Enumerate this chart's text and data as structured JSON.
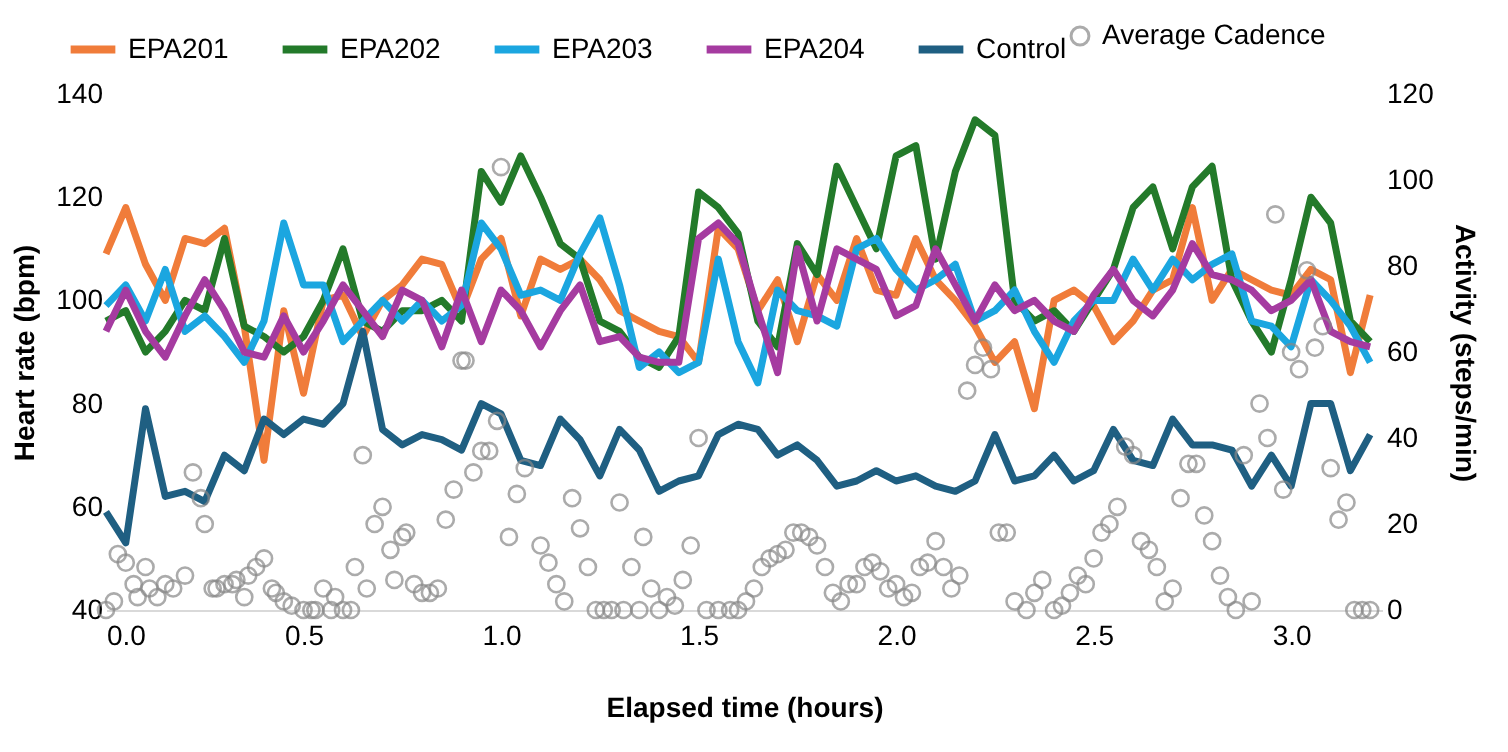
{
  "chart_data": {
    "type": "line",
    "xlabel": "Elapsed time (hours)",
    "ylabel": "Heart rate (bpm)",
    "y2label": "Activity (steps/min)",
    "xlim": [
      0,
      3.23
    ],
    "xticks": [
      {
        "value": 0,
        "label": "0.0"
      },
      0.5,
      {
        "value": 1,
        "label": "1.0"
      },
      1.5,
      {
        "value": 2,
        "label": "2.0"
      },
      2.5,
      {
        "value": 3,
        "label": "3.0"
      }
    ],
    "ylim": [
      40,
      140
    ],
    "yticks": [
      40,
      60,
      80,
      100,
      120,
      140
    ],
    "y2lim": [
      0,
      120
    ],
    "y2ticks": [
      0,
      20,
      40,
      60,
      80,
      100,
      120
    ],
    "grid": false,
    "legend": "top",
    "line_style": "solid",
    "x": [
      0,
      0.05,
      0.1,
      0.15,
      0.2,
      0.25,
      0.3,
      0.35,
      0.4,
      0.45,
      0.5,
      0.55,
      0.6,
      0.65,
      0.7,
      0.75,
      0.8,
      0.85,
      0.9,
      0.95,
      1.0,
      1.05,
      1.1,
      1.15,
      1.2,
      1.25,
      1.3,
      1.35,
      1.4,
      1.45,
      1.5,
      1.55,
      1.6,
      1.65,
      1.7,
      1.75,
      1.8,
      1.85,
      1.9,
      1.95,
      2.0,
      2.05,
      2.1,
      2.15,
      2.2,
      2.25,
      2.3,
      2.35,
      2.4,
      2.45,
      2.5,
      2.55,
      2.6,
      2.65,
      2.7,
      2.75,
      2.8,
      2.85,
      2.9,
      2.95,
      3.0,
      3.05,
      3.1,
      3.15,
      3.2
    ],
    "series": [
      {
        "name": "EPA201",
        "color": "#f07c3a",
        "values": [
          109,
          118,
          107,
          100,
          112,
          111,
          114,
          95,
          69,
          98,
          82,
          100,
          101,
          93,
          100,
          103,
          108,
          107,
          98,
          108,
          112,
          97,
          108,
          106,
          108,
          104,
          98,
          96,
          94,
          93,
          88,
          114,
          110,
          98,
          104,
          92,
          105,
          100,
          112,
          102,
          101,
          112,
          104,
          100,
          95,
          88,
          92,
          79,
          100,
          102,
          99,
          92,
          96,
          102,
          104,
          118,
          100,
          106,
          104,
          102,
          101,
          106,
          104,
          86,
          101
        ]
      },
      {
        "name": "EPA202",
        "color": "#237a2a",
        "values": [
          96,
          98,
          90,
          94,
          100,
          98,
          112,
          95,
          93,
          90,
          93,
          100,
          110,
          96,
          94,
          98,
          98,
          100,
          96,
          125,
          119,
          128,
          120,
          111,
          108,
          96,
          94,
          89,
          87,
          93,
          121,
          118,
          113,
          96,
          91,
          111,
          105,
          126,
          118,
          110,
          128,
          130,
          108,
          125,
          135,
          132,
          100,
          96,
          98,
          94,
          100,
          106,
          118,
          122,
          110,
          122,
          126,
          104,
          96,
          90,
          104,
          120,
          115,
          96,
          92
        ]
      },
      {
        "name": "EPA203",
        "color": "#1ba6e0",
        "values": [
          99,
          103,
          96,
          106,
          94,
          97,
          93,
          88,
          96,
          115,
          103,
          103,
          92,
          96,
          100,
          96,
          100,
          96,
          99,
          115,
          110,
          101,
          102,
          100,
          109,
          116,
          103,
          87,
          90,
          86,
          88,
          108,
          92,
          84,
          102,
          98,
          97,
          95,
          110,
          112,
          106,
          102,
          104,
          107,
          96,
          98,
          102,
          94,
          88,
          96,
          100,
          100,
          108,
          102,
          108,
          104,
          107,
          109,
          96,
          95,
          91,
          104,
          100,
          95,
          88
        ]
      },
      {
        "name": "EPA204",
        "color": "#a53ba0",
        "values": [
          94,
          102,
          94,
          89,
          97,
          104,
          98,
          90,
          89,
          97,
          90,
          96,
          103,
          98,
          93,
          102,
          100,
          91,
          102,
          92,
          102,
          98,
          91,
          98,
          103,
          92,
          93,
          89,
          88,
          88,
          112,
          115,
          111,
          98,
          86,
          110,
          96,
          110,
          108,
          106,
          97,
          99,
          110,
          103,
          96,
          103,
          98,
          100,
          96,
          94,
          101,
          106,
          100,
          97,
          102,
          111,
          105,
          104,
          102,
          98,
          100,
          104,
          94,
          92,
          91
        ]
      },
      {
        "name": "Control",
        "color": "#1f5f82",
        "values": [
          59,
          53,
          79,
          62,
          63,
          61,
          70,
          67,
          77,
          74,
          77,
          76,
          80,
          94,
          75,
          72,
          74,
          73,
          71,
          80,
          78,
          69,
          68,
          77,
          73,
          66,
          75,
          71,
          63,
          65,
          66,
          74,
          76,
          75,
          70,
          72,
          69,
          64,
          65,
          67,
          65,
          66,
          64,
          63,
          65,
          74,
          65,
          66,
          70,
          65,
          67,
          75,
          69,
          68,
          77,
          72,
          72,
          71,
          64,
          70,
          64,
          80,
          80,
          67,
          74
        ]
      },
      {
        "name": "Average Cadence",
        "type": "scatter",
        "axis": "y2",
        "marker": "circle",
        "color": "#888888",
        "x": [
          0.0,
          0.02,
          0.03,
          0.05,
          0.07,
          0.08,
          0.1,
          0.11,
          0.13,
          0.15,
          0.17,
          0.2,
          0.22,
          0.24,
          0.25,
          0.27,
          0.28,
          0.3,
          0.32,
          0.33,
          0.35,
          0.36,
          0.38,
          0.4,
          0.42,
          0.43,
          0.45,
          0.47,
          0.5,
          0.52,
          0.53,
          0.55,
          0.57,
          0.58,
          0.6,
          0.62,
          0.63,
          0.65,
          0.66,
          0.68,
          0.7,
          0.72,
          0.73,
          0.75,
          0.76,
          0.78,
          0.8,
          0.82,
          0.84,
          0.86,
          0.88,
          0.9,
          0.91,
          0.93,
          0.95,
          0.97,
          0.99,
          1.0,
          1.02,
          1.04,
          1.06,
          1.1,
          1.12,
          1.14,
          1.16,
          1.18,
          1.2,
          1.22,
          1.24,
          1.26,
          1.28,
          1.3,
          1.31,
          1.33,
          1.35,
          1.36,
          1.38,
          1.4,
          1.42,
          1.44,
          1.46,
          1.48,
          1.5,
          1.52,
          1.55,
          1.58,
          1.6,
          1.62,
          1.64,
          1.66,
          1.68,
          1.7,
          1.72,
          1.74,
          1.76,
          1.78,
          1.8,
          1.82,
          1.84,
          1.86,
          1.88,
          1.9,
          1.92,
          1.94,
          1.96,
          1.98,
          2.0,
          2.02,
          2.04,
          2.06,
          2.08,
          2.1,
          2.12,
          2.14,
          2.16,
          2.18,
          2.2,
          2.22,
          2.24,
          2.26,
          2.28,
          2.3,
          2.33,
          2.35,
          2.37,
          2.4,
          2.42,
          2.44,
          2.46,
          2.48,
          2.5,
          2.52,
          2.54,
          2.56,
          2.58,
          2.6,
          2.62,
          2.64,
          2.66,
          2.68,
          2.7,
          2.72,
          2.74,
          2.76,
          2.78,
          2.8,
          2.82,
          2.84,
          2.86,
          2.88,
          2.9,
          2.92,
          2.94,
          2.96,
          2.98,
          3.0,
          3.02,
          3.04,
          3.06,
          3.08,
          3.1,
          3.12,
          3.14,
          3.16,
          3.18,
          3.2
        ],
        "values": [
          0,
          2,
          13,
          11,
          6,
          3,
          10,
          5,
          3,
          6,
          5,
          8,
          32,
          26,
          20,
          5,
          5,
          6,
          6,
          7,
          3,
          8,
          10,
          12,
          5,
          4,
          2,
          1,
          0,
          0,
          0,
          5,
          0,
          3,
          0,
          0,
          10,
          36,
          5,
          20,
          24,
          14,
          7,
          17,
          18,
          6,
          4,
          4,
          5,
          21,
          28,
          58,
          58,
          32,
          37,
          37,
          44,
          103,
          17,
          27,
          33,
          15,
          11,
          6,
          2,
          26,
          19,
          10,
          0,
          0,
          0,
          25,
          0,
          10,
          0,
          17,
          5,
          0,
          3,
          1,
          7,
          15,
          40,
          0,
          0,
          0,
          0,
          2,
          5,
          10,
          12,
          13,
          14,
          18,
          18,
          17,
          15,
          10,
          4,
          2,
          6,
          6,
          10,
          11,
          9,
          5,
          6,
          3,
          4,
          10,
          11,
          16,
          10,
          5,
          8,
          51,
          57,
          61,
          56,
          18,
          18,
          2,
          0,
          4,
          7,
          0,
          1,
          4,
          8,
          6,
          12,
          18,
          20,
          24,
          38,
          36,
          16,
          14,
          10,
          2,
          5,
          26,
          34,
          34,
          22,
          16,
          8,
          3,
          0,
          36,
          2,
          48,
          40,
          92,
          28,
          60,
          56,
          79,
          61,
          66,
          33,
          21,
          25,
          0,
          0,
          0
        ]
      }
    ]
  }
}
